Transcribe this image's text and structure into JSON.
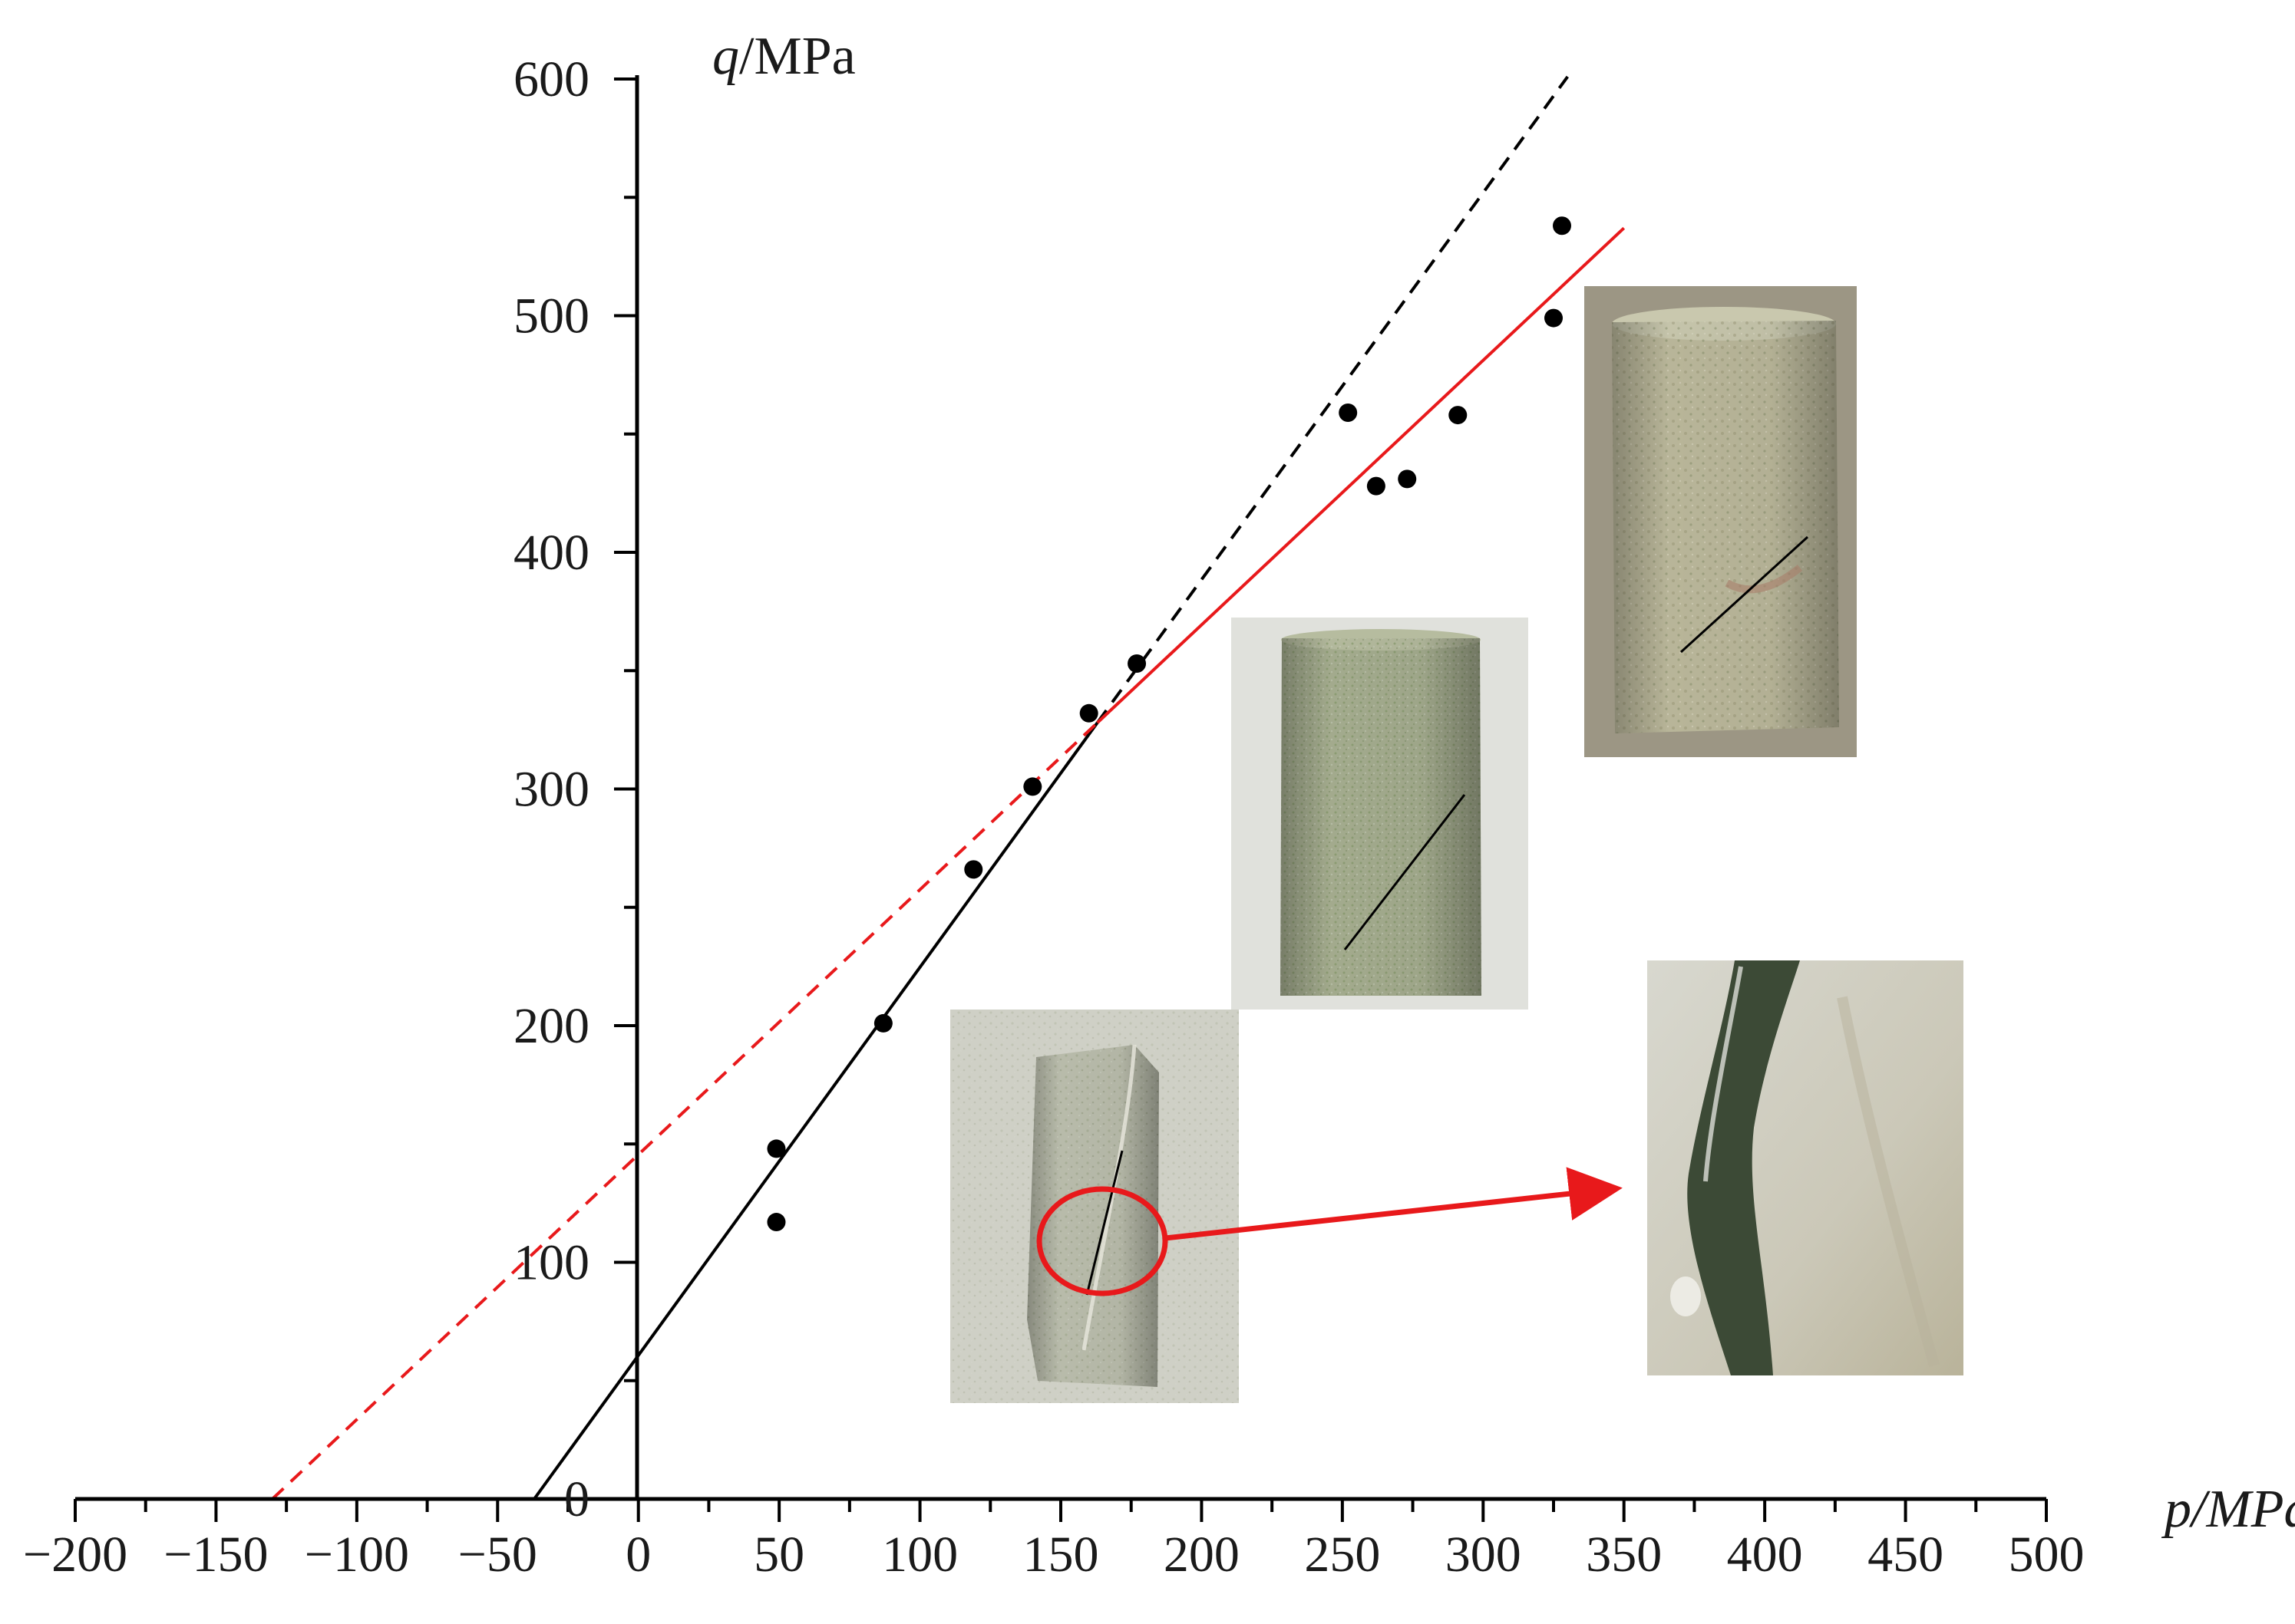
{
  "chart_data": {
    "type": "scatter",
    "xlabel_var": "p",
    "xlabel_unit": "/MPa",
    "ylabel_var": "q",
    "ylabel_unit": "/MPa",
    "xlim": [
      -200,
      500
    ],
    "ylim": [
      0,
      600
    ],
    "x_ticks": [
      -200,
      -150,
      -100,
      -50,
      0,
      50,
      100,
      150,
      200,
      250,
      300,
      350,
      400,
      450,
      500
    ],
    "x_tick_labels": [
      "−200",
      "−150",
      "−100",
      "−50",
      "0",
      "50",
      "100",
      "150",
      "200",
      "250",
      "300",
      "350",
      "400",
      "450",
      "500"
    ],
    "y_ticks": [
      0,
      100,
      200,
      300,
      400,
      500,
      600
    ],
    "y_tick_labels": [
      "0",
      "100",
      "200",
      "300",
      "400",
      "500",
      "600"
    ],
    "points": [
      {
        "x": 49,
        "y": 117
      },
      {
        "x": 49,
        "y": 148
      },
      {
        "x": 87,
        "y": 201
      },
      {
        "x": 119,
        "y": 266
      },
      {
        "x": 140,
        "y": 301
      },
      {
        "x": 160,
        "y": 332
      },
      {
        "x": 177,
        "y": 353
      },
      {
        "x": 252,
        "y": 459
      },
      {
        "x": 262,
        "y": 428
      },
      {
        "x": 273,
        "y": 431
      },
      {
        "x": 291,
        "y": 458
      },
      {
        "x": 325,
        "y": 499
      },
      {
        "x": 328,
        "y": 538
      }
    ],
    "fit_lines": [
      {
        "color": "#000000",
        "dash": false,
        "from": [
          -37,
          0
        ],
        "to": [
          163,
          328
        ]
      },
      {
        "color": "#000000",
        "dash": true,
        "from": [
          163,
          328
        ],
        "to": [
          330,
          601
        ]
      },
      {
        "color": "#e8191b",
        "dash": true,
        "from": [
          -130,
          0
        ],
        "to": [
          163,
          328
        ]
      },
      {
        "color": "#e8191b",
        "dash": false,
        "from": [
          163,
          328
        ],
        "to": [
          350,
          537
        ]
      }
    ],
    "photos": [
      {
        "name": "specimen-low-pressure-photo",
        "tone": "#b9bcae"
      },
      {
        "name": "specimen-mid-pressure-photo",
        "tone": "#a8b092"
      },
      {
        "name": "specimen-high-pressure-photo",
        "tone": "#b8b597"
      },
      {
        "name": "fracture-closeup-photo",
        "tone": "#cfcfc4"
      }
    ],
    "callout_color": "#e8191b"
  }
}
